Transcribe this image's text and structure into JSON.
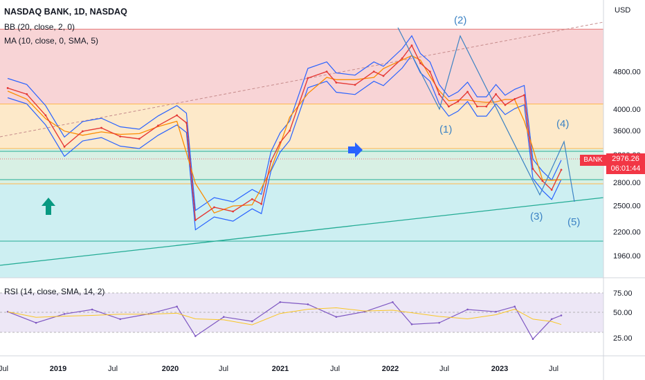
{
  "header": {
    "title": "NASDAQ BANK, 1D, NASDAQ",
    "bb_label": "BB (20, close, 2, 0)",
    "ma_label": "MA (10, close, 0, SMA, 5)",
    "rsi_label": "RSI (14, close, SMA, 14, 2)",
    "currency": "USD",
    "symbol": "BANK",
    "last_price": "2976.26",
    "countdown": "06:01:44"
  },
  "colors": {
    "price_line": "#e53935",
    "ma_line": "#fb8c00",
    "bb_band": "#2962ff",
    "rsi_line": "#7e57c2",
    "rsi_ma": "#f9c623",
    "zone_red": "#f8d4d6",
    "zone_orange": "#fde9c9",
    "zone_green": "#d8f0e4",
    "zone_teal": "#cdeff2",
    "badge": "#f23645"
  },
  "chart_data": [
    {
      "type": "line",
      "title": "NASDAQ BANK, 1D, NASDAQ",
      "ylabel": "USD",
      "scale": "log",
      "ylim": [
        1760,
        6800
      ],
      "y_ticks": [
        "4800.00",
        "4000.00",
        "3600.00",
        "3200.00",
        "2800.00",
        "2500.00",
        "2200.00",
        "1960.00"
      ],
      "x_ticks": [
        "Jul",
        "2019",
        "Jul",
        "2020",
        "Jul",
        "2021",
        "Jul",
        "2022",
        "Jul",
        "2023",
        "Jul"
      ],
      "x": [
        "2018-07",
        "2018-09",
        "2018-11",
        "2019-01",
        "2019-03",
        "2019-05",
        "2019-07",
        "2019-09",
        "2019-11",
        "2020-01",
        "2020-02",
        "2020-03",
        "2020-05",
        "2020-07",
        "2020-09",
        "2020-10",
        "2020-11",
        "2020-12",
        "2021-01",
        "2021-03",
        "2021-05",
        "2021-06",
        "2021-08",
        "2021-10",
        "2021-11",
        "2022-01",
        "2022-02",
        "2022-03",
        "2022-04",
        "2022-05",
        "2022-06",
        "2022-07",
        "2022-08",
        "2022-09",
        "2022-10",
        "2022-11",
        "2022-12",
        "2023-01",
        "2023-02",
        "2023-03",
        "2023-04",
        "2023-05",
        "2023-06"
      ],
      "series": [
        {
          "type": "line",
          "values": [
            4430,
            4300,
            3880,
            3330,
            3590,
            3650,
            3500,
            3460,
            3690,
            3880,
            3740,
            2330,
            2480,
            2430,
            2580,
            2520,
            3100,
            3400,
            3600,
            4650,
            4800,
            4550,
            4500,
            4800,
            4700,
            5120,
            5450,
            5000,
            4800,
            4300,
            4050,
            4150,
            4350,
            4050,
            4050,
            4300,
            4080,
            4200,
            4280,
            2990,
            2820,
            2700,
            2976
          ]
        }
      ],
      "annotations": [
        "(1)",
        "(2)",
        "(3)",
        "(4)",
        "(5)"
      ],
      "zones": [
        {
          "from": 4100,
          "to": 5900
        },
        {
          "from": 3300,
          "to": 4100
        },
        {
          "from": 2780,
          "to": 3300
        },
        {
          "from": 1760,
          "to": 2780
        }
      ],
      "grid": false
    },
    {
      "type": "line",
      "title": "RSI (14, close, SMA, 14, 2)",
      "ylim": [
        0,
        100
      ],
      "y_ticks": [
        "75.00",
        "50.00",
        "25.00"
      ],
      "x": [
        "2018-07",
        "2018-10",
        "2019-01",
        "2019-04",
        "2019-07",
        "2019-10",
        "2020-01",
        "2020-03",
        "2020-06",
        "2020-09",
        "2020-12",
        "2021-03",
        "2021-06",
        "2021-09",
        "2021-12",
        "2022-02",
        "2022-05",
        "2022-08",
        "2022-11",
        "2023-01",
        "2023-03",
        "2023-05",
        "2023-06"
      ],
      "series": [
        {
          "type": "line",
          "values": [
            55,
            40,
            52,
            58,
            45,
            52,
            62,
            22,
            48,
            42,
            68,
            65,
            48,
            55,
            68,
            38,
            40,
            58,
            55,
            62,
            18,
            45,
            50
          ]
        }
      ]
    }
  ]
}
